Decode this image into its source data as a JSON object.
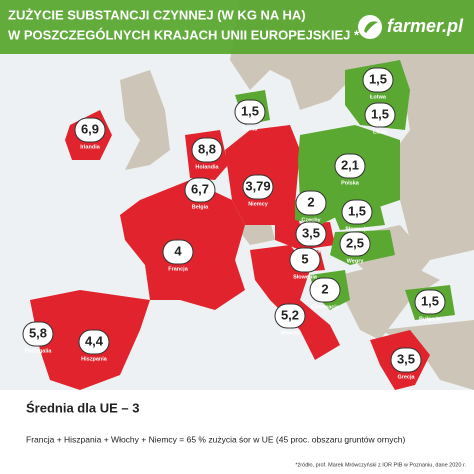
{
  "header": {
    "title_lines": [
      "ZUŻYCIE SUBSTANCJI CZYNNEJ (W KG NA HA)",
      "W POSZCZEGÓLNYCH KRAJACH UNII EUROPEJSKIEJ *"
    ],
    "logo": "farmer.pl"
  },
  "countries": [
    {
      "name": "Irlandia",
      "value": "6,9"
    },
    {
      "name": "Dania",
      "value": "1,5"
    },
    {
      "name": "Łotwa",
      "value": "1,5"
    },
    {
      "name": "Litwa",
      "value": "1,5"
    },
    {
      "name": "Holandia",
      "value": "8,8"
    },
    {
      "name": "Belgia",
      "value": "6,7"
    },
    {
      "name": "Niemcy",
      "value": "3,79"
    },
    {
      "name": "Polska",
      "value": "2,1"
    },
    {
      "name": "Czechy",
      "value": "2"
    },
    {
      "name": "Słowacja",
      "value": "1,5"
    },
    {
      "name": "Austria",
      "value": "3,5"
    },
    {
      "name": "Węgry",
      "value": "2,5"
    },
    {
      "name": "Francja",
      "value": "4"
    },
    {
      "name": "Słowenia",
      "value": "5"
    },
    {
      "name": "Chorwacja",
      "value": "2"
    },
    {
      "name": "Bułgaria",
      "value": "1,5"
    },
    {
      "name": "Portugalia",
      "value": "5,8"
    },
    {
      "name": "Hiszpania",
      "value": "4,4"
    },
    {
      "name": "Włochy",
      "value": "5,2"
    },
    {
      "name": "Grecja",
      "value": "3,5"
    }
  ],
  "footer": {
    "average": "Średnia dla UE – 3",
    "note": "Francja + Hiszpania + Włochy + Niemcy = 65 % zużycia śor w UE (45 proc. obszaru gruntów ornych)",
    "source": "*źródło, prof. Marek Mrówczyński z IOR PIB w Poznaniu, dane 2020 r."
  }
}
